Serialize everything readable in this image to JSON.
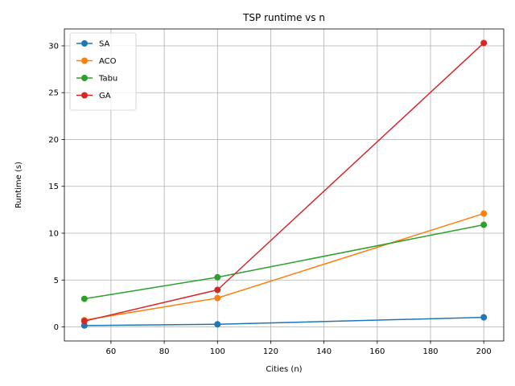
{
  "chart_data": {
    "type": "line",
    "title": "TSP runtime vs n",
    "xlabel": "Cities (n)",
    "ylabel": "Runtime (s)",
    "x": [
      50,
      100,
      200
    ],
    "xlim": [
      42.5,
      207.5
    ],
    "ylim": [
      -1.5,
      31.8
    ],
    "xticks": [
      60,
      80,
      100,
      120,
      140,
      160,
      180,
      200
    ],
    "yticks": [
      0,
      5,
      10,
      15,
      20,
      25,
      30
    ],
    "grid": true,
    "legend_position": "upper-left",
    "series": [
      {
        "name": "SA",
        "color": "#1f77b4",
        "values": [
          0.15,
          0.28,
          1.02
        ]
      },
      {
        "name": "ACO",
        "color": "#ff7f0e",
        "values": [
          0.72,
          3.08,
          12.1
        ]
      },
      {
        "name": "Tabu",
        "color": "#2ca02c",
        "values": [
          3.0,
          5.3,
          10.9
        ]
      },
      {
        "name": "GA",
        "color": "#d62728",
        "values": [
          0.62,
          3.95,
          30.3
        ]
      }
    ]
  }
}
